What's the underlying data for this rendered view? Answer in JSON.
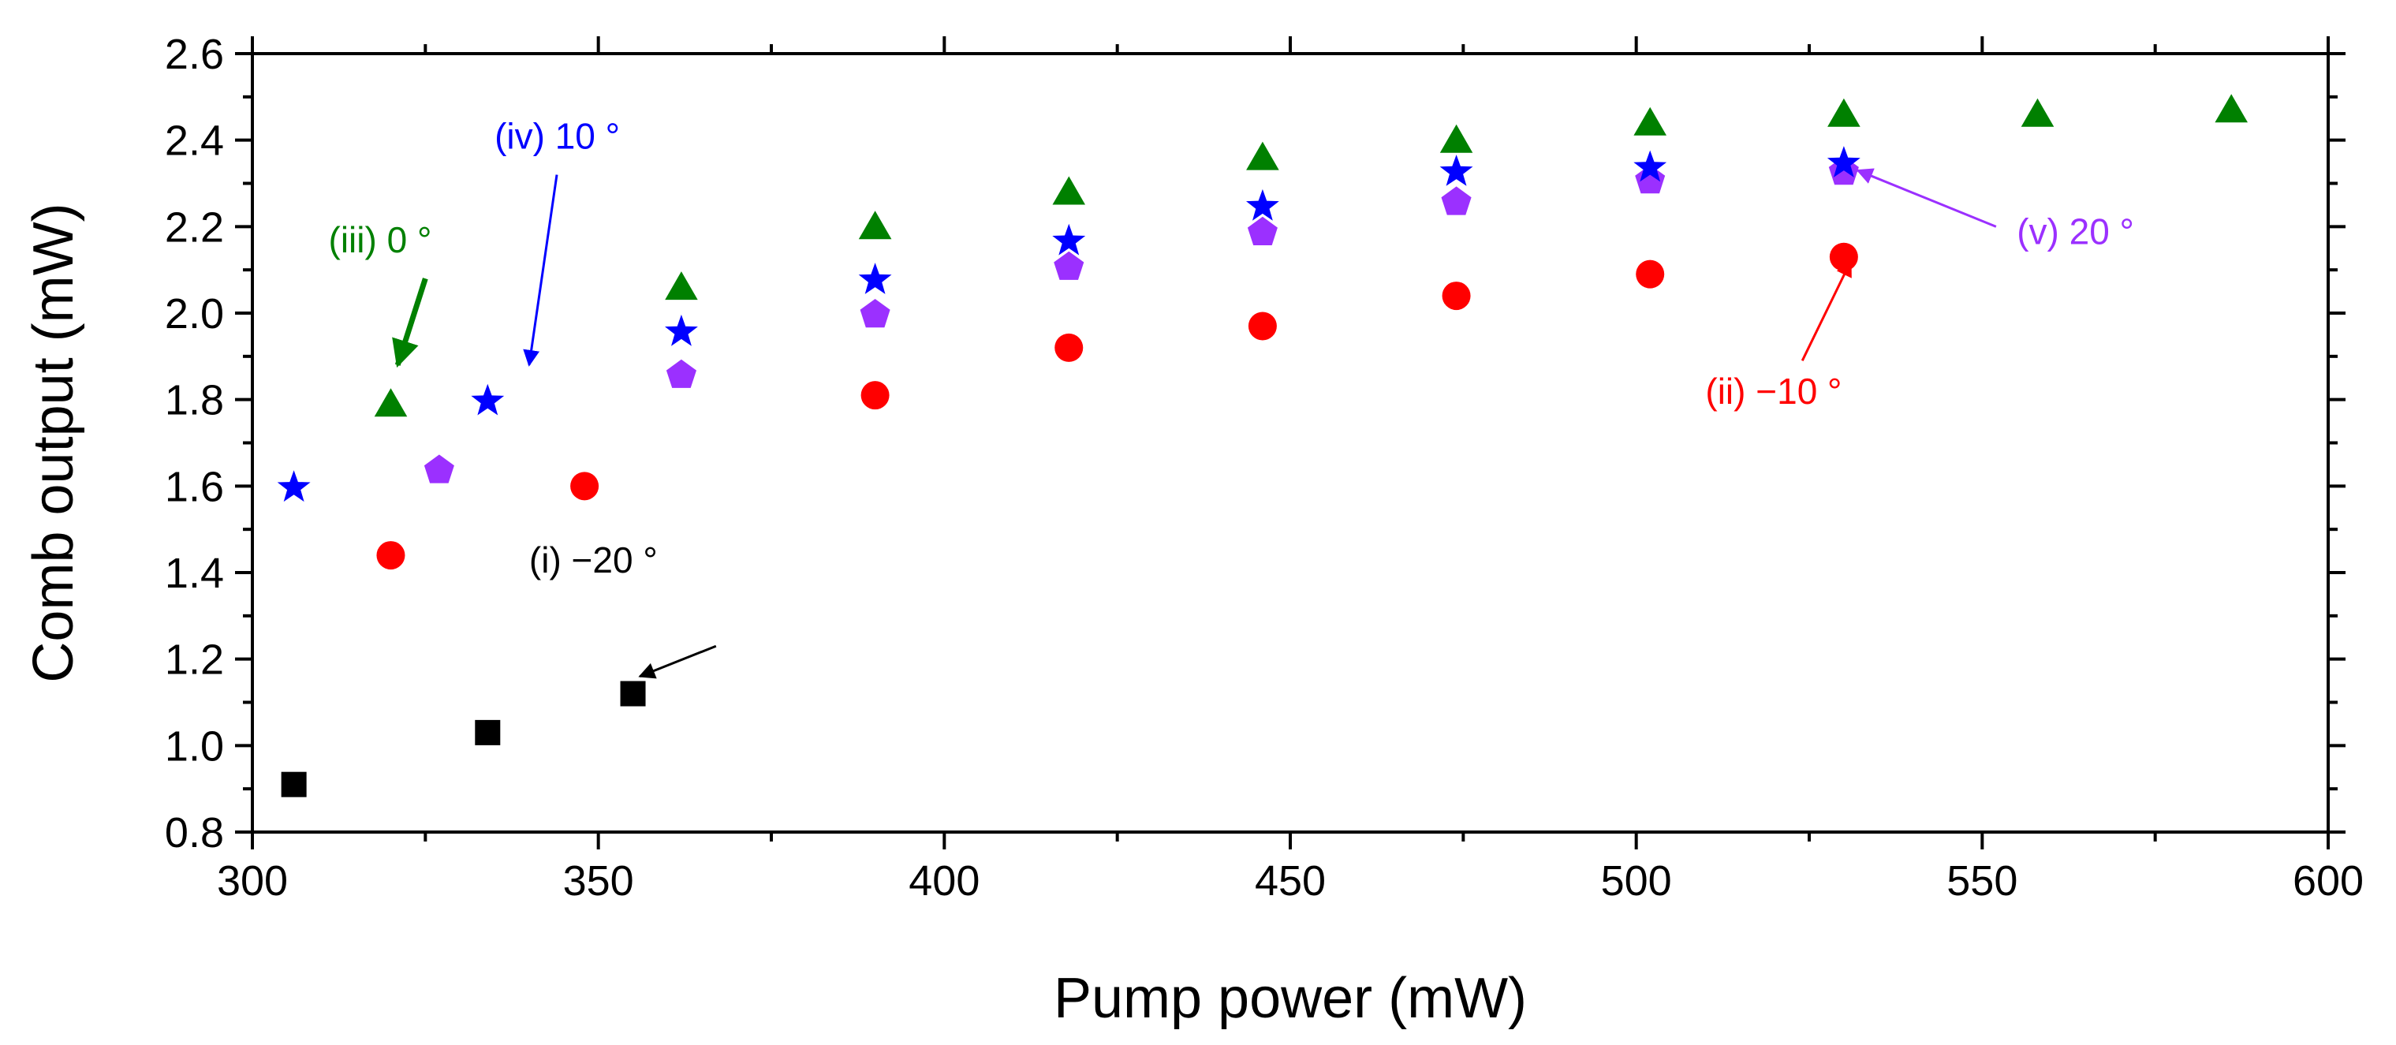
{
  "chart_data": {
    "type": "scatter",
    "title": "",
    "xlabel": "Pump power (mW)",
    "ylabel": "Comb output (mW)",
    "xlim": [
      300,
      600
    ],
    "ylim": [
      0.8,
      2.6
    ],
    "x_ticks": [
      300,
      350,
      400,
      450,
      500,
      550,
      600
    ],
    "y_ticks": [
      0.8,
      1.0,
      1.2,
      1.4,
      1.6,
      1.8,
      2.0,
      2.2,
      2.4,
      2.6
    ],
    "x_tick_labels": [
      "300",
      "350",
      "400",
      "450",
      "500",
      "550",
      "600"
    ],
    "y_tick_labels": [
      "0.8",
      "1.0",
      "1.2",
      "1.4",
      "1.6",
      "1.8",
      "2.0",
      "2.2",
      "2.4",
      "2.6"
    ],
    "grid": false,
    "series": [
      {
        "name": "(i) −20 °",
        "marker": "square",
        "color": "#000000",
        "x": [
          306,
          334,
          355
        ],
        "y": [
          0.91,
          1.03,
          1.12
        ]
      },
      {
        "name": "(ii) −10 °",
        "marker": "circle",
        "color": "#ff0000",
        "x": [
          320,
          348,
          390,
          418,
          446,
          474,
          502,
          530
        ],
        "y": [
          1.44,
          1.6,
          1.81,
          1.92,
          1.97,
          2.04,
          2.09,
          2.13
        ]
      },
      {
        "name": "(iii) 0 °",
        "marker": "triangle",
        "color": "#008000",
        "x": [
          320,
          362,
          390,
          418,
          446,
          474,
          502,
          530,
          558,
          586
        ],
        "y": [
          1.79,
          2.06,
          2.2,
          2.28,
          2.36,
          2.4,
          2.44,
          2.46,
          2.46,
          2.47
        ]
      },
      {
        "name": "(iv) 10 °",
        "marker": "star",
        "color": "#0000ff",
        "x": [
          306,
          334,
          362,
          390,
          418,
          446,
          474,
          502,
          530
        ],
        "y": [
          1.6,
          1.8,
          1.96,
          2.08,
          2.17,
          2.25,
          2.33,
          2.34,
          2.35
        ]
      },
      {
        "name": "(v) 20 °",
        "marker": "pentagon",
        "color": "#9b30ff",
        "x": [
          327,
          362,
          390,
          418,
          446,
          474,
          502,
          530
        ],
        "y": [
          1.64,
          1.86,
          2.0,
          2.11,
          2.19,
          2.26,
          2.31,
          2.33
        ]
      }
    ],
    "annotations": [
      {
        "text": "(i) −20 °",
        "color": "#000000",
        "points_to": [
          356,
          1.16
        ]
      },
      {
        "text": "(ii) −10 °",
        "color": "#ff0000",
        "points_to": [
          531,
          2.12
        ]
      },
      {
        "text": "(iii) 0 °",
        "color": "#008000",
        "points_to": [
          321,
          1.88
        ]
      },
      {
        "text": "(iv) 10 °",
        "color": "#0000ff",
        "points_to": [
          340,
          1.88
        ]
      },
      {
        "text": "(v) 20 °",
        "color": "#9b30ff",
        "points_to": [
          532,
          2.33
        ]
      }
    ]
  }
}
